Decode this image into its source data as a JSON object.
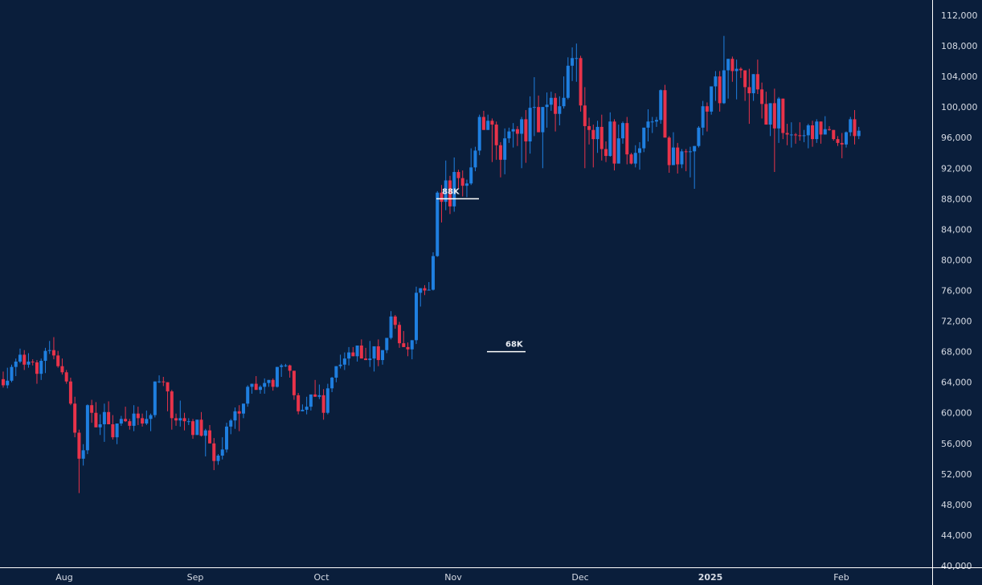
{
  "chart_data": {
    "type": "candlestick",
    "title": "",
    "xlabel": "",
    "ylabel": "",
    "ylim": [
      40000,
      112000
    ],
    "y_ticks": [
      112000,
      108000,
      104000,
      100000,
      96000,
      92000,
      88000,
      84000,
      80000,
      76000,
      72000,
      68000,
      64000,
      60000,
      56000,
      52000,
      48000,
      44000,
      40000
    ],
    "y_tick_labels": [
      "112,000",
      "108,000",
      "104,000",
      "100,000",
      "96,000",
      "92,000",
      "88,000",
      "84,000",
      "80,000",
      "76,000",
      "72,000",
      "68,000",
      "64,000",
      "60,000",
      "56,000",
      "52,000",
      "48,000",
      "44,000",
      "40,000"
    ],
    "x_tick_labels": [
      {
        "label": "Aug",
        "x": 80,
        "bold": false
      },
      {
        "label": "Sep",
        "x": 243,
        "bold": false
      },
      {
        "label": "Oct",
        "x": 400,
        "bold": false
      },
      {
        "label": "Nov",
        "x": 564,
        "bold": false
      },
      {
        "label": "Dec",
        "x": 722,
        "bold": false
      },
      {
        "label": "2025",
        "x": 884,
        "bold": true
      },
      {
        "label": "Feb",
        "x": 1047,
        "bold": false
      }
    ],
    "grid": false,
    "colors": {
      "up": "#1f7fe0",
      "down": "#e8334a",
      "background": "#0a1e3b",
      "axis": "#ffffff",
      "text": "#d6dbe4"
    },
    "annotations": [
      {
        "label": "88K",
        "price": 88000,
        "x1": 543,
        "x2": 596
      },
      {
        "label": "68K",
        "price": 68000,
        "x1": 606,
        "x2": 654
      }
    ],
    "candle_x_start": 4,
    "candle_spacing": 5.245,
    "candles": [
      [
        64400,
        65400,
        63300,
        63600
      ],
      [
        63600,
        65900,
        63200,
        64200
      ],
      [
        64200,
        66300,
        64000,
        66000
      ],
      [
        66000,
        67100,
        64800,
        66700
      ],
      [
        66700,
        68400,
        66500,
        67600
      ],
      [
        67600,
        68200,
        65600,
        66300
      ],
      [
        66300,
        67800,
        65900,
        66700
      ],
      [
        66700,
        67000,
        66200,
        66600
      ],
      [
        66600,
        66900,
        63800,
        65100
      ],
      [
        65100,
        67100,
        64300,
        66800
      ],
      [
        66800,
        68500,
        65200,
        68100
      ],
      [
        68100,
        69400,
        67700,
        68200
      ],
      [
        68200,
        69900,
        67000,
        67500
      ],
      [
        67500,
        68100,
        65900,
        66100
      ],
      [
        66100,
        67100,
        65000,
        65300
      ],
      [
        65300,
        65600,
        63800,
        64100
      ],
      [
        64100,
        64600,
        61000,
        61200
      ],
      [
        61200,
        62100,
        56800,
        57400
      ],
      [
        57400,
        57800,
        49500,
        54000
      ],
      [
        54000,
        55900,
        53100,
        55100
      ],
      [
        55100,
        61100,
        54600,
        61000
      ],
      [
        61000,
        61700,
        58700,
        60000
      ],
      [
        60000,
        61400,
        58900,
        58100
      ],
      [
        58100,
        59800,
        57100,
        58500
      ],
      [
        58500,
        61200,
        56200,
        60100
      ],
      [
        60100,
        61500,
        59600,
        58500
      ],
      [
        58500,
        59700,
        56500,
        56800
      ],
      [
        56800,
        58500,
        55900,
        58600
      ],
      [
        58600,
        59600,
        58300,
        59200
      ],
      [
        59200,
        60800,
        58800,
        58900
      ],
      [
        58900,
        59200,
        57800,
        58300
      ],
      [
        58300,
        61000,
        57600,
        59900
      ],
      [
        59900,
        60800,
        58400,
        59300
      ],
      [
        59300,
        59900,
        58200,
        58600
      ],
      [
        58600,
        60300,
        58400,
        59200
      ],
      [
        59200,
        59900,
        57600,
        59700
      ],
      [
        59700,
        61900,
        59400,
        64100
      ],
      [
        64100,
        64900,
        63900,
        64100
      ],
      [
        64100,
        64700,
        63500,
        64000
      ],
      [
        64000,
        64000,
        60200,
        62800
      ],
      [
        62800,
        63000,
        57800,
        59300
      ],
      [
        59300,
        59900,
        58300,
        59000
      ],
      [
        59000,
        61600,
        58200,
        59300
      ],
      [
        59300,
        60000,
        57700,
        58900
      ],
      [
        58900,
        59300,
        58400,
        58900
      ],
      [
        58900,
        59200,
        56600,
        57100
      ],
      [
        57100,
        59000,
        57100,
        59100
      ],
      [
        59100,
        60100,
        56900,
        57000
      ],
      [
        57000,
        57900,
        54300,
        57700
      ],
      [
        57700,
        58400,
        56200,
        56000
      ],
      [
        56000,
        56700,
        52500,
        53700
      ],
      [
        53700,
        54600,
        53200,
        54400
      ],
      [
        54400,
        56800,
        53900,
        55200
      ],
      [
        55200,
        58700,
        54800,
        58200
      ],
      [
        58200,
        59200,
        57200,
        59000
      ],
      [
        59000,
        60700,
        57900,
        60200
      ],
      [
        60200,
        61000,
        57600,
        59900
      ],
      [
        59900,
        61100,
        59300,
        61200
      ],
      [
        61200,
        63600,
        60800,
        63400
      ],
      [
        63400,
        63800,
        62500,
        63800
      ],
      [
        63800,
        64800,
        63700,
        63000
      ],
      [
        63000,
        63600,
        62500,
        63400
      ],
      [
        63400,
        64500,
        62500,
        63900
      ],
      [
        63900,
        64300,
        63400,
        64300
      ],
      [
        64300,
        64500,
        62900,
        63400
      ],
      [
        63400,
        66000,
        63300,
        66000
      ],
      [
        66000,
        66400,
        64700,
        66200
      ],
      [
        66200,
        66400,
        66000,
        66200
      ],
      [
        66200,
        66300,
        64600,
        65500
      ],
      [
        65500,
        65400,
        61700,
        62300
      ],
      [
        62300,
        62600,
        59800,
        60200
      ],
      [
        60200,
        61100,
        60600,
        60400
      ],
      [
        60400,
        62100,
        59800,
        60800
      ],
      [
        60800,
        61400,
        60300,
        62400
      ],
      [
        62400,
        64300,
        62100,
        62100
      ],
      [
        62100,
        63700,
        61800,
        62300
      ],
      [
        62300,
        63100,
        59100,
        60000
      ],
      [
        60000,
        63800,
        59800,
        63200
      ],
      [
        63200,
        64700,
        62700,
        64600
      ],
      [
        64600,
        65600,
        64000,
        66100
      ],
      [
        66100,
        67600,
        65800,
        66300
      ],
      [
        66300,
        67900,
        65600,
        67100
      ],
      [
        67100,
        68600,
        66200,
        67900
      ],
      [
        67900,
        68600,
        67400,
        67400
      ],
      [
        67400,
        67900,
        66700,
        68800
      ],
      [
        68800,
        69600,
        68500,
        67100
      ],
      [
        67100,
        68500,
        67500,
        66900
      ],
      [
        66900,
        69400,
        66000,
        67100
      ],
      [
        67100,
        67900,
        65400,
        68700
      ],
      [
        68700,
        69600,
        66100,
        66900
      ],
      [
        66900,
        67700,
        66300,
        68200
      ],
      [
        68200,
        69400,
        67800,
        69800
      ],
      [
        69800,
        73300,
        69600,
        72600
      ],
      [
        72600,
        72800,
        71000,
        71500
      ],
      [
        71500,
        71900,
        68500,
        69100
      ],
      [
        69100,
        70700,
        68600,
        68600
      ],
      [
        68600,
        69200,
        67400,
        68300
      ],
      [
        68300,
        69200,
        67000,
        69500
      ],
      [
        69500,
        76500,
        69000,
        75700
      ],
      [
        75700,
        76200,
        73900,
        76300
      ],
      [
        76300,
        76700,
        75400,
        76000
      ],
      [
        76000,
        77100,
        76100,
        76100
      ],
      [
        76100,
        81000,
        76000,
        80500
      ],
      [
        80500,
        89000,
        80400,
        88800
      ],
      [
        88800,
        89800,
        84900,
        87600
      ],
      [
        87600,
        93000,
        86500,
        90400
      ],
      [
        90400,
        91000,
        86000,
        87000
      ],
      [
        87000,
        93400,
        86300,
        91500
      ],
      [
        91500,
        91800,
        89300,
        90700
      ],
      [
        90700,
        91700,
        88300,
        89700
      ],
      [
        89700,
        90500,
        88200,
        90000
      ],
      [
        90000,
        94600,
        89800,
        92100
      ],
      [
        92100,
        94800,
        91600,
        94300
      ],
      [
        94300,
        99000,
        93700,
        98700
      ],
      [
        98700,
        99500,
        97200,
        97000
      ],
      [
        97000,
        99000,
        97200,
        98200
      ],
      [
        98200,
        98500,
        92800,
        97700
      ],
      [
        97700,
        98100,
        93100,
        95000
      ],
      [
        95000,
        95400,
        90800,
        93100
      ],
      [
        93100,
        97200,
        91200,
        95900
      ],
      [
        95900,
        97300,
        95300,
        96800
      ],
      [
        96800,
        97900,
        94700,
        97100
      ],
      [
        97100,
        97500,
        94900,
        96500
      ],
      [
        96500,
        98700,
        92000,
        98400
      ],
      [
        98400,
        99600,
        92700,
        95500
      ],
      [
        95500,
        101400,
        93900,
        99900
      ],
      [
        99900,
        103900,
        96200,
        100000
      ],
      [
        100000,
        101500,
        96700,
        96700
      ],
      [
        96700,
        97100,
        92000,
        100000
      ],
      [
        100000,
        101900,
        97300,
        100300
      ],
      [
        100300,
        102000,
        99500,
        101200
      ],
      [
        101200,
        101800,
        96800,
        99100
      ],
      [
        99100,
        101400,
        97600,
        100100
      ],
      [
        100100,
        104000,
        99800,
        101200
      ],
      [
        101200,
        106500,
        101000,
        105400
      ],
      [
        105400,
        107800,
        103400,
        106400
      ],
      [
        106400,
        108300,
        103300,
        106400
      ],
      [
        106400,
        106700,
        99400,
        100200
      ],
      [
        100200,
        102600,
        92000,
        97500
      ],
      [
        97500,
        98600,
        95100,
        97000
      ],
      [
        97000,
        97700,
        92100,
        95800
      ],
      [
        95800,
        98200,
        94000,
        97400
      ],
      [
        97400,
        99000,
        93000,
        94500
      ],
      [
        94500,
        95500,
        92800,
        93600
      ],
      [
        93600,
        99300,
        93500,
        98100
      ],
      [
        98100,
        98400,
        91700,
        92600
      ],
      [
        92600,
        97700,
        92800,
        95900
      ],
      [
        95900,
        98100,
        95200,
        97900
      ],
      [
        97900,
        98700,
        92500,
        93800
      ],
      [
        93800,
        94000,
        92500,
        92600
      ],
      [
        92600,
        95000,
        92100,
        94000
      ],
      [
        94000,
        95400,
        91800,
        94600
      ],
      [
        94600,
        97200,
        94100,
        97300
      ],
      [
        97300,
        99700,
        95500,
        98100
      ],
      [
        98100,
        98700,
        96600,
        98100
      ],
      [
        98100,
        98700,
        97400,
        98300
      ],
      [
        98300,
        102300,
        97800,
        102200
      ],
      [
        102200,
        102900,
        96000,
        96000
      ],
      [
        96000,
        96200,
        91400,
        92400
      ],
      [
        92400,
        96700,
        92600,
        94700
      ],
      [
        94700,
        95300,
        91300,
        92500
      ],
      [
        92500,
        94500,
        92000,
        94200
      ],
      [
        94200,
        94500,
        91600,
        94100
      ],
      [
        94100,
        94800,
        90800,
        94200
      ],
      [
        94200,
        94700,
        89300,
        94900
      ],
      [
        94900,
        97500,
        94700,
        97300
      ],
      [
        97300,
        100800,
        96300,
        100100
      ],
      [
        100100,
        100600,
        96800,
        99400
      ],
      [
        99400,
        102600,
        99000,
        102700
      ],
      [
        102700,
        104700,
        100800,
        104000
      ],
      [
        104000,
        104700,
        99400,
        100500
      ],
      [
        100500,
        109300,
        100400,
        104800
      ],
      [
        104800,
        106300,
        101100,
        106300
      ],
      [
        106300,
        106600,
        103300,
        104700
      ],
      [
        104700,
        106200,
        101000,
        105000
      ],
      [
        105000,
        105200,
        103800,
        104800
      ],
      [
        104800,
        104700,
        100800,
        102600
      ],
      [
        102600,
        105000,
        97800,
        101800
      ],
      [
        101800,
        104300,
        100800,
        104300
      ],
      [
        104300,
        106200,
        101700,
        102300
      ],
      [
        102300,
        103200,
        98500,
        100400
      ],
      [
        100400,
        102000,
        97700,
        97700
      ],
      [
        97700,
        100000,
        96200,
        100500
      ],
      [
        100500,
        102400,
        91500,
        97200
      ],
      [
        97200,
        101300,
        95300,
        101100
      ],
      [
        101100,
        100500,
        95800,
        96600
      ],
      [
        96600,
        97800,
        95000,
        96400
      ],
      [
        96400,
        98000,
        94700,
        96400
      ],
      [
        96400,
        96600,
        95200,
        96300
      ],
      [
        96300,
        98000,
        95600,
        96200
      ],
      [
        96200,
        97000,
        95400,
        96300
      ],
      [
        96300,
        97800,
        94600,
        97600
      ],
      [
        97600,
        98200,
        94800,
        95800
      ],
      [
        95800,
        98400,
        95300,
        98100
      ],
      [
        98100,
        97900,
        95200,
        96400
      ],
      [
        96400,
        98800,
        96600,
        97100
      ],
      [
        97100,
        97500,
        96900,
        97000
      ],
      [
        97000,
        96800,
        95600,
        95800
      ],
      [
        95800,
        96200,
        94900,
        95300
      ],
      [
        95300,
        96600,
        93300,
        95100
      ],
      [
        95100,
        96800,
        94700,
        96700
      ],
      [
        96700,
        98700,
        96200,
        98400
      ],
      [
        98400,
        99600,
        95100,
        96200
      ],
      [
        96200,
        97400,
        95800,
        96900
      ]
    ]
  },
  "price_axis": {
    "labels": [
      "112,000",
      "108,000",
      "104,000",
      "100,000",
      "96,000",
      "92,000",
      "88,000",
      "84,000",
      "80,000",
      "76,000",
      "72,000",
      "68,000",
      "64,000",
      "60,000",
      "56,000",
      "52,000",
      "48,000",
      "44,000",
      "40,000"
    ]
  },
  "time_axis": {
    "labels": [
      "Aug",
      "Sep",
      "Oct",
      "Nov",
      "Dec",
      "2025",
      "Feb"
    ]
  },
  "annotations": {
    "upper_label": "88K",
    "lower_label": "68K"
  }
}
